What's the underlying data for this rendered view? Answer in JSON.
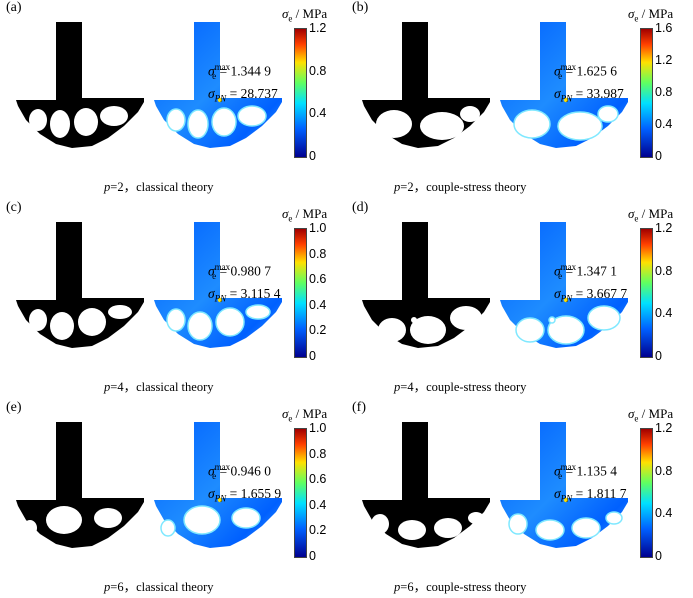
{
  "panels": [
    {
      "label": "(a)",
      "p": "2",
      "theory": "classical theory",
      "smax": "1.344 9",
      "spn": "28.737",
      "ticks": [
        "1.2",
        "0.8",
        "0.4",
        "0"
      ]
    },
    {
      "label": "(b)",
      "p": "2",
      "theory": "couple-stress theory",
      "smax": "1.625 6",
      "spn": "33.987",
      "ticks": [
        "1.6",
        "1.2",
        "0.8",
        "0.4",
        "0"
      ]
    },
    {
      "label": "(c)",
      "p": "4",
      "theory": "classical theory",
      "smax": "0.980 7",
      "spn": "3.115 4",
      "ticks": [
        "1.0",
        "0.8",
        "0.6",
        "0.4",
        "0.2",
        "0"
      ]
    },
    {
      "label": "(d)",
      "p": "4",
      "theory": "couple-stress theory",
      "smax": "1.347 1",
      "spn": "3.667 7",
      "ticks": [
        "1.2",
        "0.8",
        "0.4",
        "0"
      ]
    },
    {
      "label": "(e)",
      "p": "6",
      "theory": "classical theory",
      "smax": "0.946 0",
      "spn": "1.655 9",
      "ticks": [
        "1.0",
        "0.8",
        "0.6",
        "0.4",
        "0.2",
        "0"
      ]
    },
    {
      "label": "(f)",
      "p": "6",
      "theory": "couple-stress theory",
      "smax": "1.135 4",
      "spn": "1.811 7",
      "ticks": [
        "1.2",
        "0.8",
        "0.4",
        "0"
      ]
    }
  ],
  "symbols": {
    "sigma": "σ",
    "sub_e": "e",
    "sup_max": "max",
    "sub_pn": "PN",
    "unit": " / MPa",
    "p_prefix": "p",
    "eq": " = ",
    "sep": "，"
  },
  "colors": {
    "black": "#000000",
    "blue_dark": "#00008f",
    "blue": "#0060ff",
    "cyan": "#00e0ff",
    "green": "#60ff60",
    "yellow": "#ffe000",
    "red": "#a00000"
  }
}
